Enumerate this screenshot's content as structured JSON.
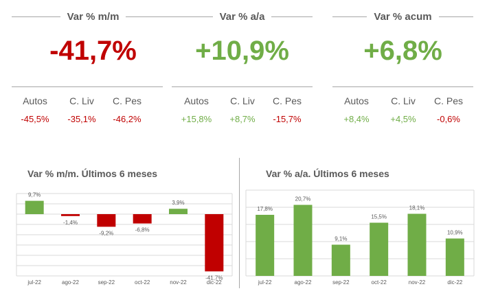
{
  "kpis": [
    {
      "title": "Var % m/m",
      "value": "-41,7%",
      "sign": "neg",
      "subs": [
        {
          "label": "Autos",
          "value": "-45,5%",
          "sign": "neg"
        },
        {
          "label": "C. Liv",
          "value": "-35,1%",
          "sign": "neg"
        },
        {
          "label": "C. Pes",
          "value": "-46,2%",
          "sign": "neg"
        }
      ]
    },
    {
      "title": "Var % a/a",
      "value": "+10,9%",
      "sign": "pos",
      "subs": [
        {
          "label": "Autos",
          "value": "+15,8%",
          "sign": "pos"
        },
        {
          "label": "C. Liv",
          "value": "+8,7%",
          "sign": "pos"
        },
        {
          "label": "C. Pes",
          "value": "-15,7%",
          "sign": "neg"
        }
      ]
    },
    {
      "title": "Var % acum",
      "value": "+6,8%",
      "sign": "pos",
      "subs": [
        {
          "label": "Autos",
          "value": "+8,4%",
          "sign": "pos"
        },
        {
          "label": "C. Liv",
          "value": "+4,5%",
          "sign": "pos"
        },
        {
          "label": "C. Pes",
          "value": "-0,6%",
          "sign": "neg"
        }
      ]
    }
  ],
  "colors": {
    "negative": "#c00000",
    "positive": "#70ad47",
    "grid": "#d9d9d9",
    "text": "#595959"
  },
  "chart_data": [
    {
      "type": "bar",
      "title": "Var % m/m. Últimos 6 meses",
      "categories": [
        "jul-22",
        "ago-22",
        "sep-22",
        "oct-22",
        "nov-22",
        "dic-22"
      ],
      "values": [
        9.7,
        -1.4,
        -9.2,
        -6.8,
        3.9,
        -41.7
      ],
      "labels": [
        "9,7%",
        "-1,4%",
        "-9,2%",
        "-6,8%",
        "3,9%",
        "-41,7%"
      ],
      "ylim": [
        -45,
        15
      ],
      "grid": true
    },
    {
      "type": "bar",
      "title": "Var % a/a. Últimos 6 meses",
      "categories": [
        "jul-22",
        "ago-22",
        "sep-22",
        "oct-22",
        "nov-22",
        "dic-22"
      ],
      "values": [
        17.8,
        20.7,
        9.1,
        15.5,
        18.1,
        10.9
      ],
      "labels": [
        "17,8%",
        "20,7%",
        "9,1%",
        "15,5%",
        "18,1%",
        "10,9%"
      ],
      "ylim": [
        0,
        25
      ],
      "grid": true
    }
  ]
}
